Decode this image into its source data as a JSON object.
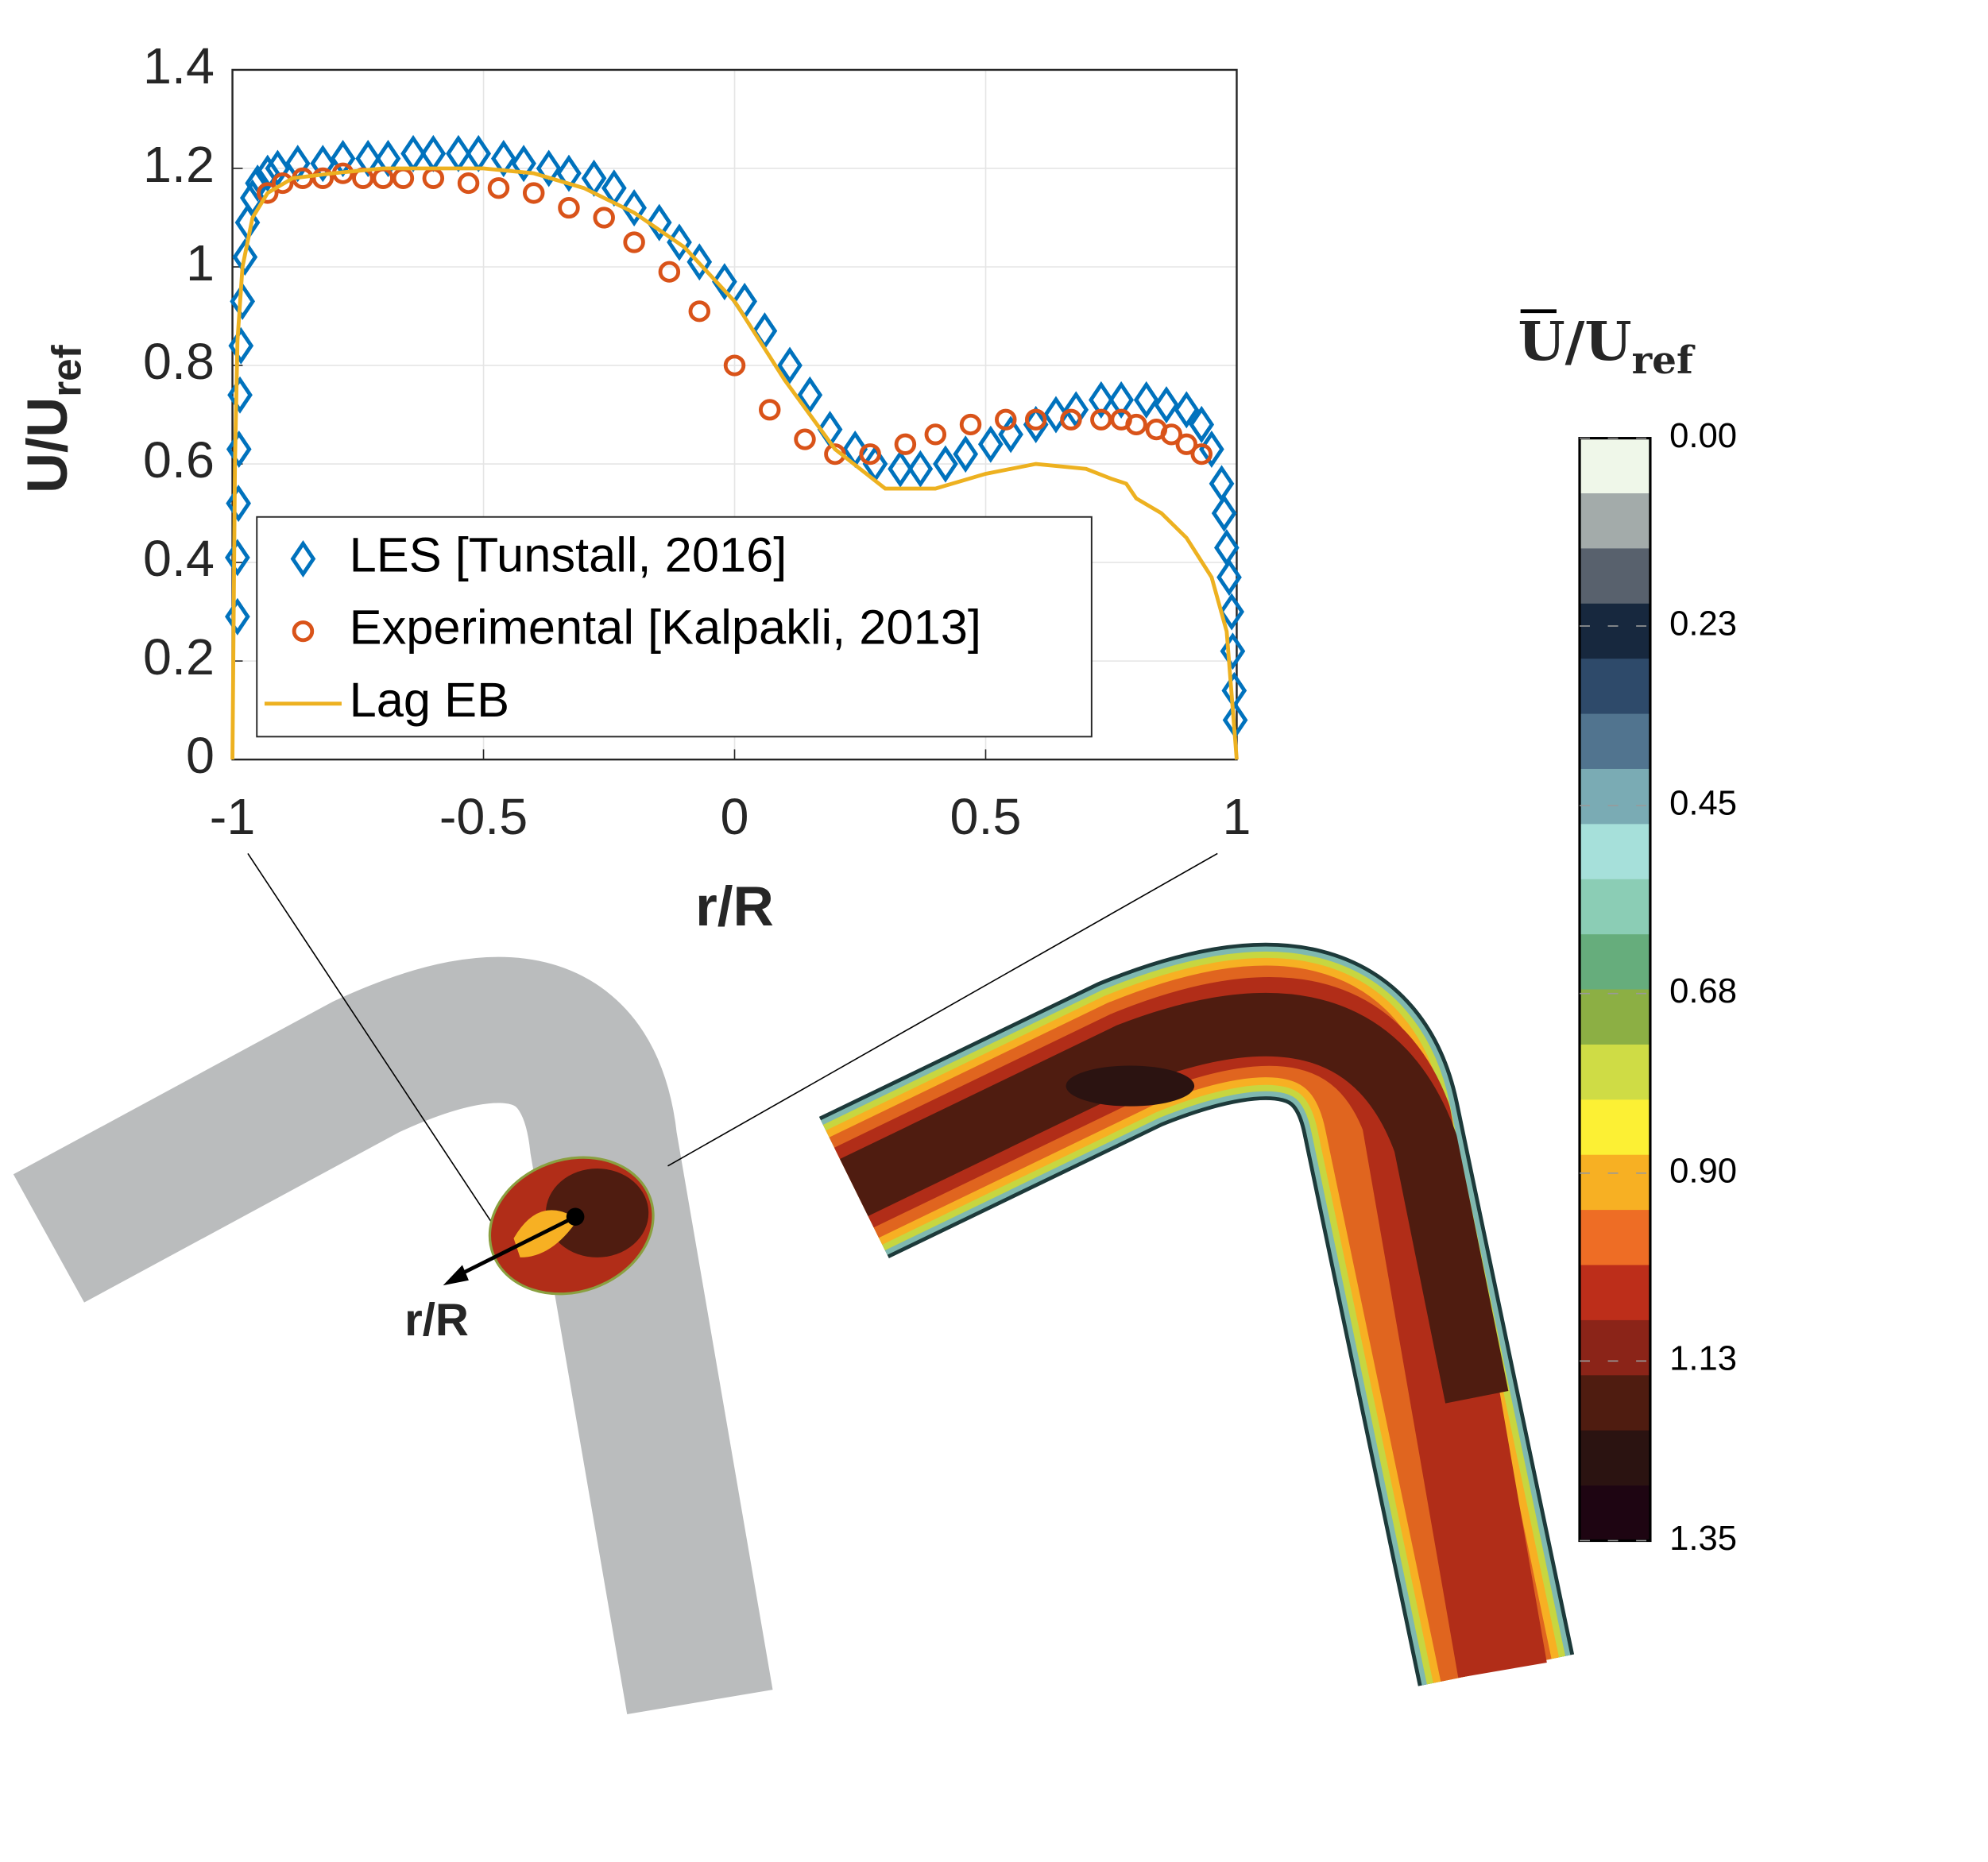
{
  "chart_data": {
    "type": "line",
    "xlabel": "r/R",
    "ylabel": "U/U",
    "ylabel_sub": "ref",
    "xlim": [
      -1,
      1
    ],
    "ylim": [
      0,
      1.4
    ],
    "xticks": [
      -1,
      -0.5,
      0,
      0.5,
      1
    ],
    "yticks": [
      0,
      0.2,
      0.4,
      0.6,
      0.8,
      1,
      1.2,
      1.4
    ],
    "grid": true,
    "legend": "lower-left",
    "series": [
      {
        "name": "LES [Tunstall, 2016]",
        "color": "#0072bd",
        "marker": "diamond",
        "x": [
          -0.99,
          -0.99,
          -0.988,
          -0.987,
          -0.985,
          -0.983,
          -0.98,
          -0.975,
          -0.97,
          -0.96,
          -0.95,
          -0.93,
          -0.91,
          -0.87,
          -0.82,
          -0.78,
          -0.73,
          -0.69,
          -0.64,
          -0.6,
          -0.55,
          -0.51,
          -0.46,
          -0.42,
          -0.37,
          -0.33,
          -0.28,
          -0.24,
          -0.2,
          -0.15,
          -0.11,
          -0.07,
          -0.02,
          0.02,
          0.06,
          0.11,
          0.15,
          0.19,
          0.24,
          0.28,
          0.33,
          0.37,
          0.42,
          0.46,
          0.51,
          0.55,
          0.6,
          0.64,
          0.68,
          0.73,
          0.77,
          0.82,
          0.86,
          0.9,
          0.93,
          0.95,
          0.97,
          0.975,
          0.98,
          0.985,
          0.99,
          0.992,
          0.995,
          0.997
        ],
        "values": [
          0.29,
          0.41,
          0.52,
          0.63,
          0.74,
          0.84,
          0.93,
          1.02,
          1.09,
          1.14,
          1.17,
          1.19,
          1.2,
          1.21,
          1.21,
          1.22,
          1.22,
          1.22,
          1.23,
          1.23,
          1.23,
          1.23,
          1.22,
          1.21,
          1.2,
          1.19,
          1.18,
          1.16,
          1.12,
          1.09,
          1.05,
          1.01,
          0.97,
          0.93,
          0.87,
          0.8,
          0.74,
          0.67,
          0.63,
          0.6,
          0.59,
          0.59,
          0.6,
          0.62,
          0.64,
          0.66,
          0.68,
          0.7,
          0.71,
          0.73,
          0.73,
          0.73,
          0.72,
          0.71,
          0.68,
          0.63,
          0.56,
          0.5,
          0.43,
          0.37,
          0.3,
          0.22,
          0.14,
          0.08
        ]
      },
      {
        "name": "Experimental [Kalpakli, 2013]",
        "color": "#d95319",
        "marker": "circle",
        "x": [
          -0.93,
          -0.9,
          -0.86,
          -0.82,
          -0.78,
          -0.74,
          -0.7,
          -0.66,
          -0.6,
          -0.53,
          -0.47,
          -0.4,
          -0.33,
          -0.26,
          -0.2,
          -0.13,
          -0.07,
          0,
          0.07,
          0.14,
          0.2,
          0.27,
          0.34,
          0.4,
          0.47,
          0.54,
          0.6,
          0.67,
          0.73,
          0.77,
          0.8,
          0.84,
          0.87,
          0.9,
          0.93
        ],
        "values": [
          1.15,
          1.17,
          1.18,
          1.18,
          1.19,
          1.18,
          1.18,
          1.18,
          1.18,
          1.17,
          1.16,
          1.15,
          1.12,
          1.1,
          1.05,
          0.99,
          0.91,
          0.8,
          0.71,
          0.65,
          0.62,
          0.62,
          0.64,
          0.66,
          0.68,
          0.69,
          0.69,
          0.69,
          0.69,
          0.69,
          0.68,
          0.67,
          0.66,
          0.64,
          0.62
        ]
      },
      {
        "name": "Lag EB",
        "color": "#edb120",
        "marker": "none",
        "x": [
          -1,
          -0.995,
          -0.99,
          -0.98,
          -0.96,
          -0.93,
          -0.88,
          -0.8,
          -0.7,
          -0.6,
          -0.5,
          -0.4,
          -0.3,
          -0.2,
          -0.1,
          0,
          0.1,
          0.2,
          0.3,
          0.4,
          0.5,
          0.6,
          0.7,
          0.75,
          0.78,
          0.8,
          0.85,
          0.9,
          0.95,
          0.98,
          1
        ],
        "values": [
          0,
          0.6,
          0.85,
          1.0,
          1.1,
          1.15,
          1.18,
          1.19,
          1.2,
          1.2,
          1.2,
          1.19,
          1.16,
          1.11,
          1.04,
          0.93,
          0.77,
          0.63,
          0.55,
          0.55,
          0.58,
          0.6,
          0.59,
          0.57,
          0.56,
          0.53,
          0.5,
          0.45,
          0.37,
          0.26,
          0
        ]
      }
    ],
    "annotation": "r/R",
    "colorbar": {
      "title": "U/U",
      "title_sub": "ref",
      "lim": [
        0,
        1.35
      ],
      "ticks": [
        {
          "value": 0,
          "label": "0.00"
        },
        {
          "value": 0.23,
          "label": "0.23"
        },
        {
          "value": 0.45,
          "label": "0.45"
        },
        {
          "value": 0.68,
          "label": "0.68"
        },
        {
          "value": 0.9,
          "label": "0.90"
        },
        {
          "value": 1.13,
          "label": "1.13"
        },
        {
          "value": 1.35,
          "label": "1.35"
        }
      ],
      "colors": [
        "#eff7e9",
        "#a3abaa",
        "#58616d",
        "#17283e",
        "#2e4a6a",
        "#51748f",
        "#7aabb4",
        "#a6e0da",
        "#8bcdb5",
        "#66ad7c",
        "#8caf44",
        "#cfdc45",
        "#fcf034",
        "#f7b023",
        "#ee6d25",
        "#bd2e1a",
        "#8b2418",
        "#4f1c10",
        "#2b1311",
        "#1e0512"
      ]
    }
  }
}
